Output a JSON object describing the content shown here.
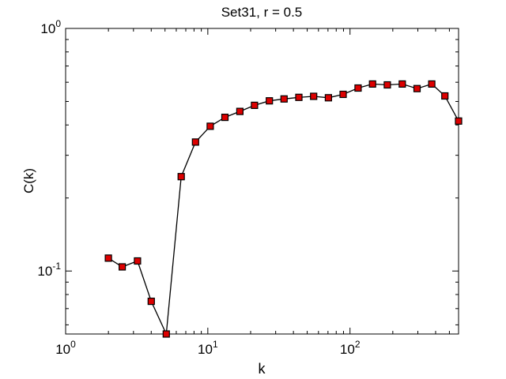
{
  "chart_data": {
    "type": "line",
    "title": "Set31, r = 0.5",
    "xlabel": "k",
    "ylabel": "C(k)",
    "xscale": "log",
    "yscale": "log",
    "xlim": [
      1,
      580
    ],
    "ylim": [
      0.055,
      1
    ],
    "grid": false,
    "legend": "none",
    "x_ticks": [
      {
        "value": 1,
        "base": "10",
        "exp": "0"
      },
      {
        "value": 10,
        "base": "10",
        "exp": "1"
      },
      {
        "value": 100,
        "base": "10",
        "exp": "2"
      }
    ],
    "y_ticks": [
      {
        "value": 0.1,
        "base": "10",
        "exp": "-1"
      },
      {
        "value": 1,
        "base": "10",
        "exp": "0"
      }
    ],
    "marker": "square",
    "marker_color": "#dd0000",
    "line_color": "#000000",
    "series": [
      {
        "x": [
          2,
          2.5,
          3.2,
          4,
          5.1,
          6.5,
          8.2,
          10.4,
          13.2,
          16.8,
          21.3,
          27.1,
          34.4,
          43.7,
          55.5,
          70.5,
          89.5,
          114,
          144,
          183,
          233,
          296,
          376,
          465,
          580
        ],
        "y": [
          0.113,
          0.104,
          0.11,
          0.075,
          0.055,
          0.245,
          0.34,
          0.395,
          0.43,
          0.455,
          0.482,
          0.503,
          0.512,
          0.52,
          0.525,
          0.518,
          0.535,
          0.568,
          0.59,
          0.585,
          0.59,
          0.565,
          0.59,
          0.527,
          0.415
        ]
      }
    ]
  }
}
